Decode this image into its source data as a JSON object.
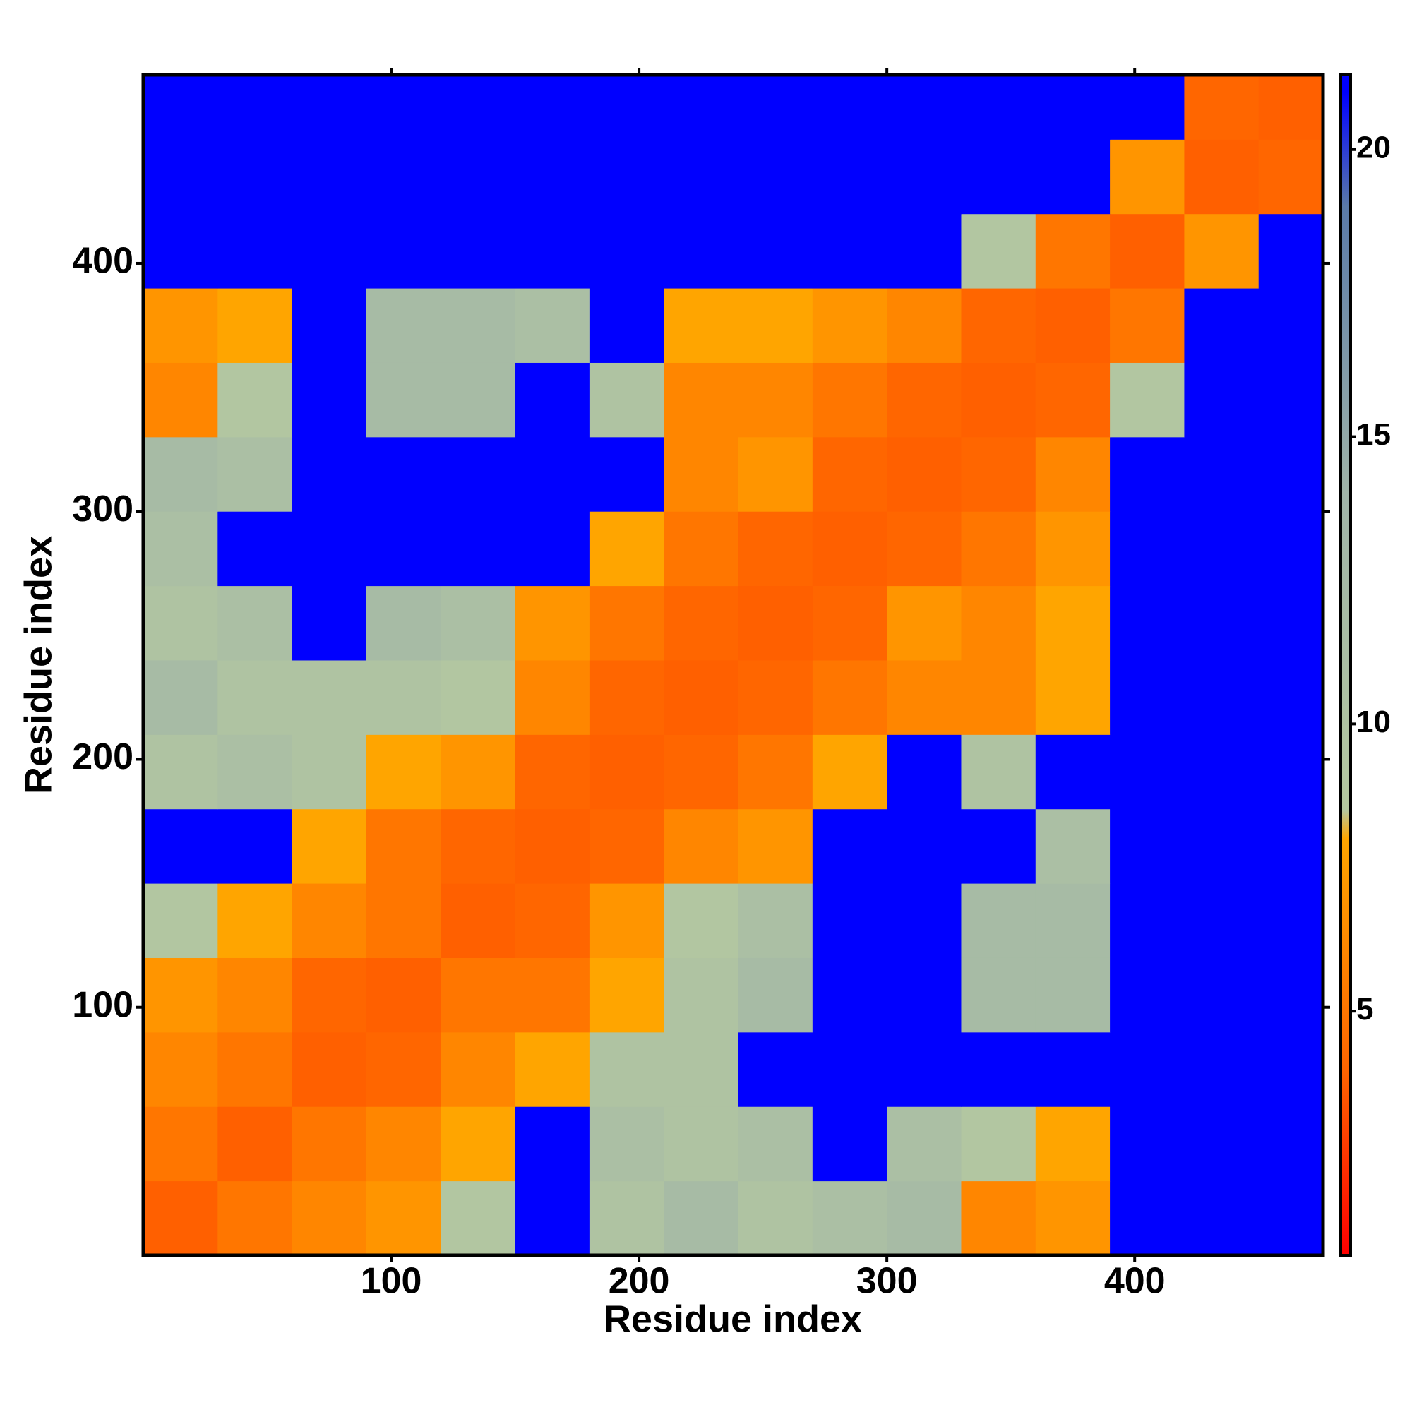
{
  "chart_data": {
    "type": "heatmap",
    "x_label": "Residue index",
    "y_label": "Residue index",
    "xlim": [
      0,
      476
    ],
    "ylim": [
      0,
      476
    ],
    "xticks": [
      100,
      200,
      300,
      400
    ],
    "yticks": [
      100,
      200,
      300,
      400
    ],
    "x_bins": [
      0,
      30,
      60,
      90,
      120,
      150,
      180,
      210,
      240,
      270,
      300,
      330,
      360,
      390,
      420,
      450,
      476
    ],
    "y_bins": [
      0,
      30,
      60,
      90,
      120,
      150,
      180,
      210,
      240,
      270,
      300,
      330,
      360,
      390,
      420,
      450,
      476
    ],
    "z": [
      [
        3.8,
        5,
        6,
        7,
        9,
        21,
        10,
        12,
        10,
        11,
        12,
        6,
        7,
        21,
        21,
        21
      ],
      [
        5,
        3.8,
        5,
        6,
        8,
        21,
        11,
        10,
        11,
        21,
        11,
        9,
        8,
        21,
        21,
        21
      ],
      [
        6,
        5,
        3.8,
        4,
        6,
        8,
        10,
        10,
        21,
        21,
        21,
        21,
        21,
        21,
        21,
        21
      ],
      [
        7,
        6,
        4,
        3.8,
        5,
        5,
        8,
        10,
        12,
        21,
        21,
        12,
        12,
        21,
        21,
        21
      ],
      [
        9,
        8,
        6,
        5,
        3.8,
        4,
        7,
        9,
        11,
        21,
        21,
        12,
        12,
        21,
        21,
        21
      ],
      [
        21,
        21,
        8,
        5,
        4,
        3.8,
        4,
        6,
        7,
        21,
        21,
        21,
        11,
        21,
        21,
        21
      ],
      [
        10,
        11,
        10,
        8,
        7,
        4,
        3.8,
        4,
        5,
        8,
        21,
        10,
        21,
        21,
        21,
        21
      ],
      [
        12,
        10,
        10,
        10,
        9,
        6,
        4,
        3.8,
        4,
        5,
        6,
        6,
        8,
        21,
        21,
        21
      ],
      [
        10,
        11,
        21,
        12,
        11,
        7,
        5,
        4,
        3.8,
        4,
        7,
        6,
        8,
        21,
        21,
        21
      ],
      [
        11,
        21,
        21,
        21,
        21,
        21,
        8,
        5,
        4,
        3.8,
        4,
        5,
        7,
        21,
        21,
        21
      ],
      [
        12,
        11,
        21,
        21,
        21,
        21,
        21,
        6,
        7,
        4,
        3.8,
        4,
        6,
        21,
        21,
        21
      ],
      [
        6,
        9,
        21,
        12,
        12,
        21,
        10,
        6,
        6,
        5,
        4,
        3.8,
        4,
        9,
        21,
        21
      ],
      [
        7,
        8,
        21,
        12,
        12,
        11,
        21,
        8,
        8,
        7,
        6,
        4,
        3.8,
        5,
        21,
        21
      ],
      [
        21,
        21,
        21,
        21,
        21,
        21,
        21,
        21,
        21,
        21,
        21,
        9,
        5,
        3.8,
        7,
        21
      ],
      [
        21,
        21,
        21,
        21,
        21,
        21,
        21,
        21,
        21,
        21,
        21,
        21,
        21,
        7,
        3.8,
        4
      ],
      [
        21,
        21,
        21,
        21,
        21,
        21,
        21,
        21,
        21,
        21,
        21,
        21,
        21,
        21,
        4,
        3.8
      ]
    ],
    "clim": [
      0.75,
      21.3
    ],
    "cticks": [
      5,
      10,
      15,
      20
    ],
    "colorscale": [
      [
        0.75,
        "#ff0000"
      ],
      [
        4,
        "#ff6600"
      ],
      [
        8,
        "#ffa500"
      ],
      [
        8.5,
        "#b4c8a0"
      ],
      [
        14,
        "#a0b4a8"
      ],
      [
        19,
        "#5a7aa8"
      ],
      [
        21,
        "#0000ff"
      ]
    ]
  }
}
